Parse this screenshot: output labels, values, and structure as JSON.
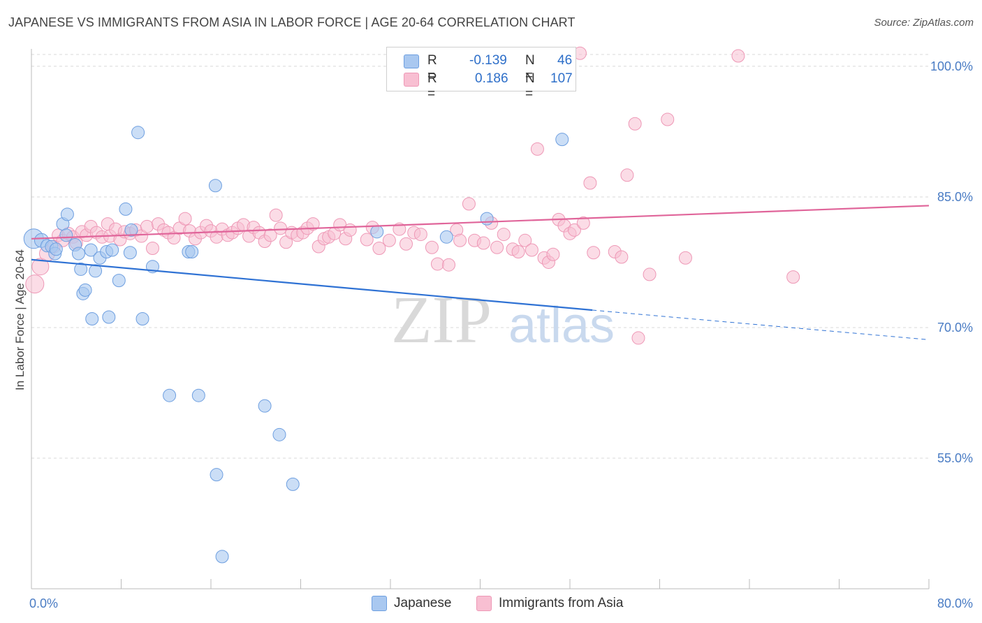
{
  "header": {
    "title": "JAPANESE VS IMMIGRANTS FROM ASIA IN LABOR FORCE | AGE 20-64 CORRELATION CHART",
    "source": "Source: ZipAtlas.com"
  },
  "watermark": {
    "zip": "ZIP",
    "atlas": "atlas"
  },
  "legend": {
    "r_label": "R =",
    "n_label": "N =",
    "rows": [
      {
        "r": "-0.139",
        "n": "46"
      },
      {
        "r": "0.186",
        "n": "107"
      }
    ]
  },
  "colors": {
    "japanese_fill": "#a9c8f0",
    "japanese_stroke": "#6e9fe0",
    "japanese_line": "#2f72d4",
    "asia_fill": "#f8bfd2",
    "asia_stroke": "#ee98b6",
    "asia_line": "#e0659a",
    "grid": "#d8d8d8",
    "tick_text": "#4a7cc4"
  },
  "chart_data": {
    "type": "scatter",
    "title": "JAPANESE VS IMMIGRANTS FROM ASIA IN LABOR FORCE | AGE 20-64 CORRELATION CHART",
    "xlabel": "",
    "ylabel": "In Labor Force | Age 20-64",
    "xlim": [
      0,
      80
    ],
    "ylim": [
      40,
      102
    ],
    "x_tick_labels": [
      "0.0%",
      "80.0%"
    ],
    "y_ticks": [
      55,
      70,
      85,
      100
    ],
    "y_tick_labels": [
      "55.0%",
      "70.0%",
      "85.0%",
      "100.0%"
    ],
    "grid": true,
    "legend_position": "top-center",
    "series": [
      {
        "name": "Japanese",
        "R": -0.139,
        "N": 46,
        "trend": {
          "x0": 0,
          "y0": 77.8,
          "x1": 50,
          "y1": 72.0,
          "dash_to_x": 80,
          "dash_to_y": 68.6
        },
        "points": [
          [
            0.2,
            80.2,
            14
          ],
          [
            0.9,
            80.0,
            10
          ],
          [
            1.4,
            79.4,
            9
          ],
          [
            1.8,
            79.3,
            9
          ],
          [
            2.1,
            78.5,
            9
          ],
          [
            2.2,
            79.0,
            9
          ],
          [
            2.8,
            81.9,
            9
          ],
          [
            3.1,
            80.6,
            9
          ],
          [
            3.2,
            83.0,
            9
          ],
          [
            3.9,
            79.5,
            9
          ],
          [
            4.2,
            78.5,
            9
          ],
          [
            4.4,
            76.7,
            9
          ],
          [
            4.6,
            73.9,
            9
          ],
          [
            4.8,
            74.3,
            9
          ],
          [
            5.3,
            78.9,
            9
          ],
          [
            5.4,
            71.0,
            9
          ],
          [
            5.7,
            76.5,
            9
          ],
          [
            6.1,
            78.0,
            9
          ],
          [
            6.7,
            78.7,
            9
          ],
          [
            6.9,
            71.2,
            9
          ],
          [
            7.2,
            78.9,
            9
          ],
          [
            7.8,
            75.4,
            9
          ],
          [
            8.4,
            83.6,
            9
          ],
          [
            8.8,
            78.6,
            9
          ],
          [
            8.9,
            81.2,
            9
          ],
          [
            9.5,
            92.4,
            9
          ],
          [
            9.9,
            71.0,
            9
          ],
          [
            10.8,
            77.0,
            9
          ],
          [
            12.3,
            62.2,
            9
          ],
          [
            14.0,
            78.7,
            9
          ],
          [
            14.3,
            78.7,
            9
          ],
          [
            14.9,
            62.2,
            9
          ],
          [
            16.4,
            86.3,
            9
          ],
          [
            16.5,
            53.1,
            9
          ],
          [
            17.0,
            43.7,
            9
          ],
          [
            20.8,
            61.0,
            9
          ],
          [
            22.1,
            57.7,
            9
          ],
          [
            23.3,
            52.0,
            9
          ],
          [
            30.8,
            81.0,
            9
          ],
          [
            37.0,
            80.4,
            9
          ],
          [
            40.6,
            82.5,
            9
          ],
          [
            47.3,
            91.6,
            9
          ]
        ]
      },
      {
        "name": "Immigrants from Asia",
        "R": 0.186,
        "N": 107,
        "trend": {
          "x0": 0,
          "y0": 80.2,
          "x1": 80,
          "y1": 84.0
        },
        "points": [
          [
            0.3,
            75.0,
            13
          ],
          [
            0.8,
            77.0,
            12
          ],
          [
            1.4,
            78.5,
            11
          ],
          [
            2.0,
            79.3,
            9
          ],
          [
            2.4,
            80.6,
            9
          ],
          [
            2.8,
            80.0,
            9
          ],
          [
            3.3,
            80.8,
            9
          ],
          [
            3.7,
            80.4,
            9
          ],
          [
            4.0,
            79.7,
            9
          ],
          [
            4.5,
            81.0,
            9
          ],
          [
            4.9,
            80.6,
            9
          ],
          [
            5.3,
            81.6,
            9
          ],
          [
            5.8,
            80.9,
            9
          ],
          [
            6.3,
            80.4,
            9
          ],
          [
            6.8,
            81.9,
            9
          ],
          [
            7.0,
            80.5,
            9
          ],
          [
            7.5,
            81.3,
            9
          ],
          [
            7.9,
            80.1,
            9
          ],
          [
            8.3,
            81.0,
            9
          ],
          [
            8.8,
            80.8,
            9
          ],
          [
            9.3,
            81.2,
            9
          ],
          [
            9.8,
            80.5,
            9
          ],
          [
            10.3,
            81.6,
            9
          ],
          [
            10.8,
            79.1,
            9
          ],
          [
            11.3,
            81.9,
            9
          ],
          [
            11.8,
            81.2,
            9
          ],
          [
            12.2,
            80.9,
            9
          ],
          [
            12.7,
            80.3,
            9
          ],
          [
            13.2,
            81.4,
            9
          ],
          [
            13.7,
            82.5,
            9
          ],
          [
            14.1,
            81.1,
            9
          ],
          [
            14.6,
            80.2,
            9
          ],
          [
            15.1,
            80.9,
            9
          ],
          [
            15.6,
            81.7,
            9
          ],
          [
            16.0,
            81.1,
            9
          ],
          [
            16.5,
            80.4,
            9
          ],
          [
            17.0,
            81.3,
            9
          ],
          [
            17.5,
            80.6,
            9
          ],
          [
            17.9,
            80.9,
            9
          ],
          [
            18.4,
            81.4,
            9
          ],
          [
            18.9,
            81.8,
            9
          ],
          [
            19.4,
            80.5,
            9
          ],
          [
            19.8,
            81.5,
            9
          ],
          [
            20.3,
            80.9,
            9
          ],
          [
            20.8,
            79.9,
            9
          ],
          [
            21.3,
            80.6,
            9
          ],
          [
            21.8,
            82.9,
            9
          ],
          [
            22.2,
            81.4,
            9
          ],
          [
            22.7,
            79.8,
            9
          ],
          [
            23.2,
            80.9,
            9
          ],
          [
            23.7,
            80.6,
            9
          ],
          [
            24.2,
            80.9,
            9
          ],
          [
            24.6,
            81.4,
            9
          ],
          [
            25.1,
            81.9,
            9
          ],
          [
            25.6,
            79.3,
            9
          ],
          [
            26.1,
            80.2,
            9
          ],
          [
            26.5,
            80.4,
            9
          ],
          [
            27.0,
            80.8,
            9
          ],
          [
            27.5,
            81.8,
            9
          ],
          [
            28.0,
            80.2,
            9
          ],
          [
            28.4,
            81.2,
            9
          ],
          [
            29.9,
            80.1,
            9
          ],
          [
            30.4,
            81.5,
            9
          ],
          [
            31.0,
            79.1,
            9
          ],
          [
            31.9,
            80.0,
            9
          ],
          [
            32.8,
            81.3,
            9
          ],
          [
            33.4,
            79.6,
            9
          ],
          [
            34.1,
            80.9,
            9
          ],
          [
            34.7,
            80.7,
            9
          ],
          [
            35.7,
            79.2,
            9
          ],
          [
            36.2,
            77.3,
            9
          ],
          [
            37.2,
            77.2,
            9
          ],
          [
            37.9,
            81.2,
            9
          ],
          [
            38.2,
            80.0,
            9
          ],
          [
            39.0,
            84.2,
            9
          ],
          [
            39.5,
            80.0,
            9
          ],
          [
            40.3,
            79.7,
            9
          ],
          [
            41.0,
            82.0,
            9
          ],
          [
            41.5,
            79.2,
            9
          ],
          [
            42.1,
            80.7,
            9
          ],
          [
            42.9,
            79.0,
            9
          ],
          [
            43.4,
            78.7,
            9
          ],
          [
            44.0,
            80.0,
            9
          ],
          [
            44.6,
            78.9,
            9
          ],
          [
            45.1,
            90.5,
            9
          ],
          [
            45.7,
            78.0,
            9
          ],
          [
            46.1,
            77.5,
            9
          ],
          [
            46.5,
            78.4,
            9
          ],
          [
            47.0,
            82.4,
            9
          ],
          [
            47.5,
            81.7,
            9
          ],
          [
            48.0,
            80.8,
            9
          ],
          [
            48.4,
            81.2,
            9
          ],
          [
            48.9,
            101.5,
            9
          ],
          [
            49.2,
            82.0,
            9
          ],
          [
            49.8,
            86.6,
            9
          ],
          [
            50.1,
            78.6,
            9
          ],
          [
            52.0,
            78.7,
            9
          ],
          [
            52.6,
            78.1,
            9
          ],
          [
            53.1,
            87.5,
            9
          ],
          [
            53.8,
            93.4,
            9
          ],
          [
            54.1,
            68.8,
            9
          ],
          [
            55.1,
            76.1,
            9
          ],
          [
            56.7,
            93.9,
            9
          ],
          [
            58.3,
            78.0,
            9
          ],
          [
            63.0,
            101.2,
            9
          ],
          [
            67.9,
            75.8,
            9
          ]
        ]
      }
    ]
  },
  "bottom_legend": [
    {
      "label": "Japanese"
    },
    {
      "label": "Immigrants from Asia"
    }
  ]
}
